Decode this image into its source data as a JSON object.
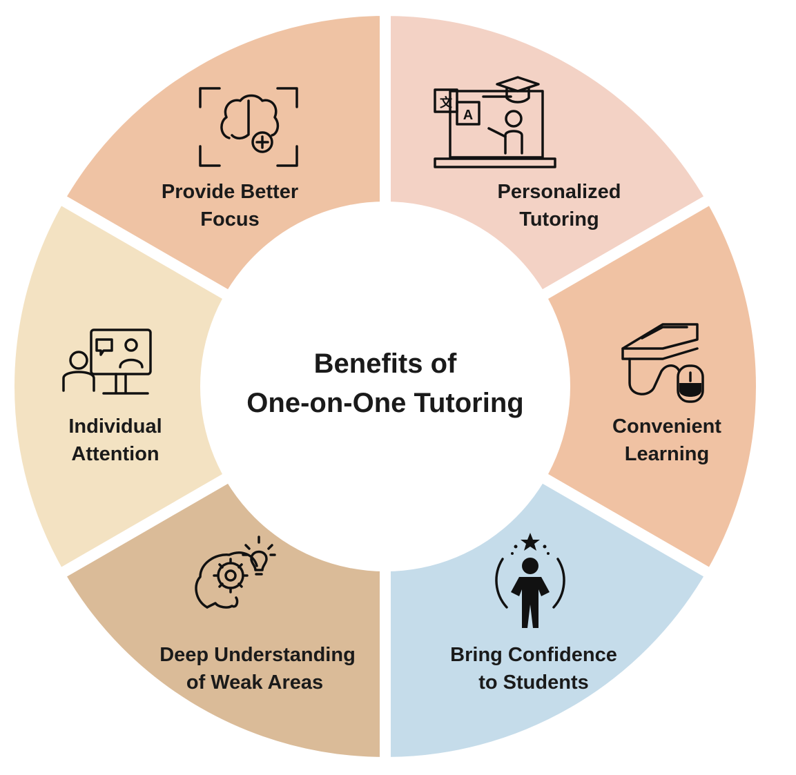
{
  "title_line1": "Benefits of",
  "title_line2": "One-on-One Tutoring",
  "segments": [
    {
      "label_line1": "Provide Better",
      "label_line2": "Focus",
      "color": "#efc3a4",
      "icon": "brain-focus-icon"
    },
    {
      "label_line1": "Personalized",
      "label_line2": "Tutoring",
      "color": "#f3d2c5",
      "icon": "online-teacher-icon"
    },
    {
      "label_line1": "Convenient",
      "label_line2": "Learning",
      "color": "#f0c2a3",
      "icon": "laptop-book-mouse-icon"
    },
    {
      "label_line1": "Bring Confidence",
      "label_line2": "to Students",
      "color": "#c5dcea",
      "icon": "confident-student-icon"
    },
    {
      "label_line1": "Deep Understanding",
      "label_line2": "of  Weak Areas",
      "color": "#dabb98",
      "icon": "head-gear-bulb-icon"
    },
    {
      "label_line1": "Individual",
      "label_line2": "Attention",
      "color": "#f3e2c2",
      "icon": "video-call-icon"
    }
  ],
  "center_color": "#ffffff"
}
